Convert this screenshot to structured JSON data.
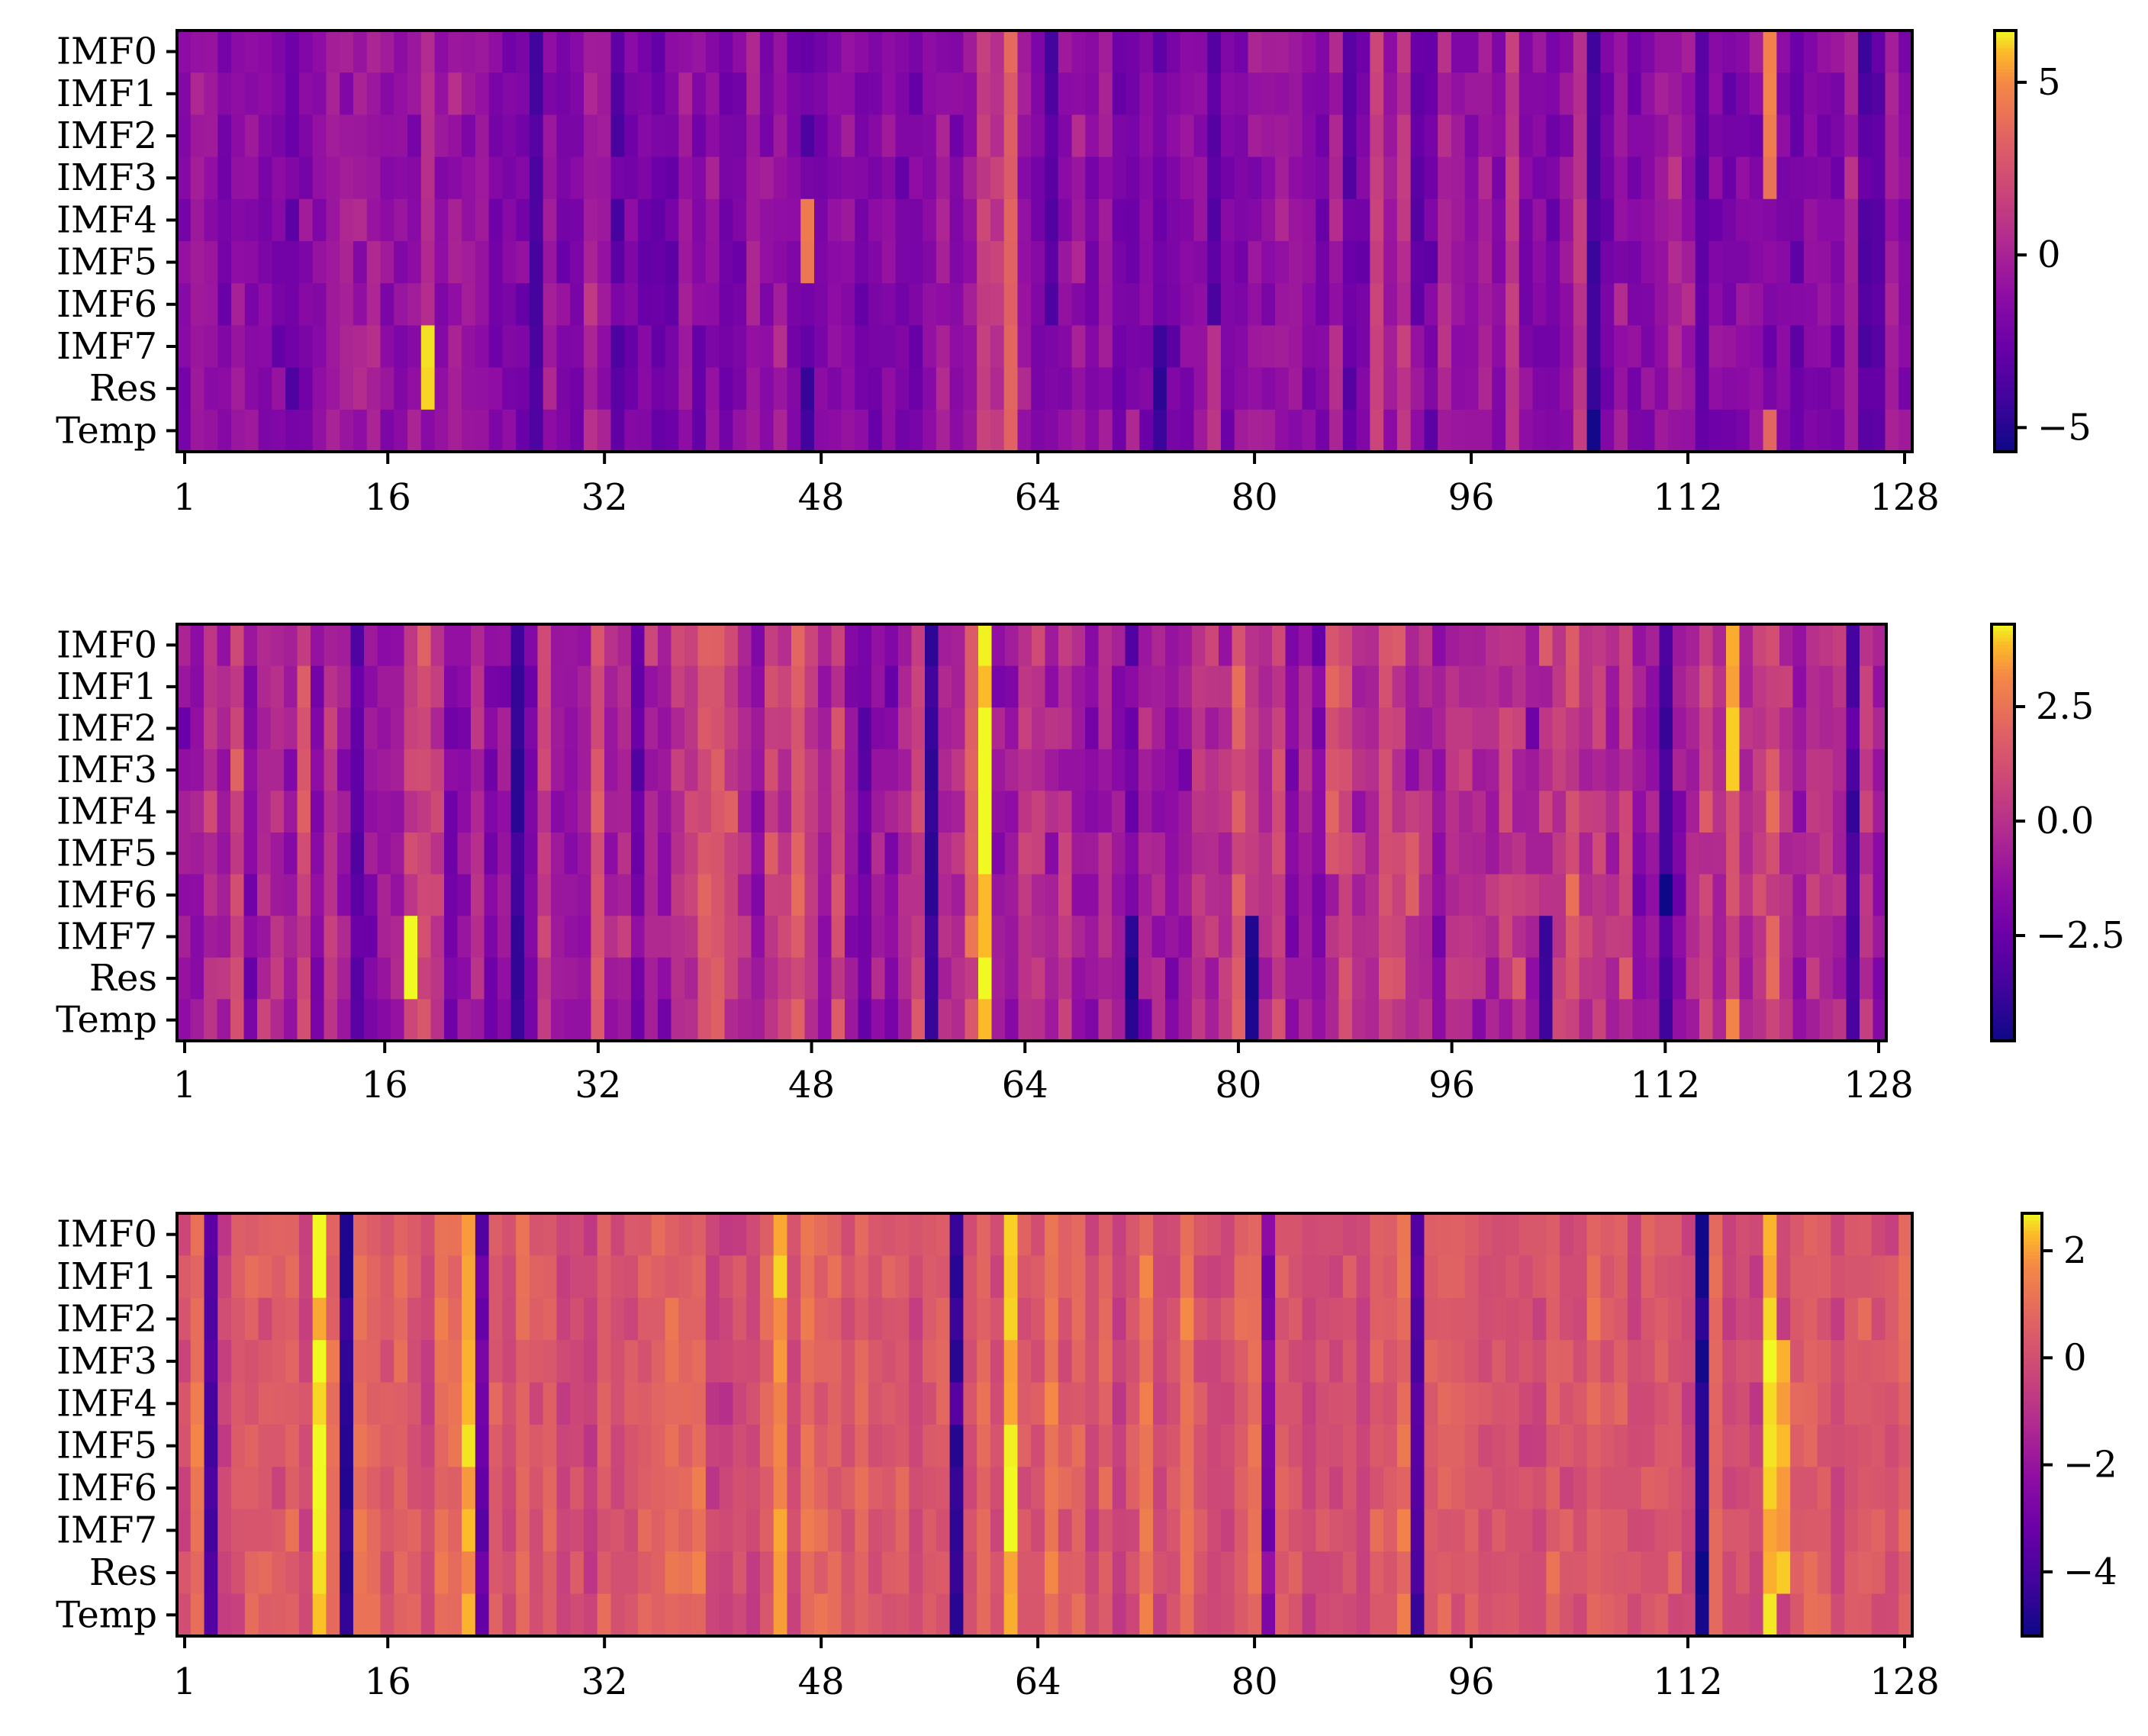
{
  "chart_data": [
    {
      "type": "heatmap",
      "colormap": "plasma",
      "rows": [
        "IMF0",
        "IMF1",
        "IMF2",
        "IMF3",
        "IMF4",
        "IMF5",
        "IMF6",
        "IMF7",
        "Res",
        "Temp"
      ],
      "x_ticks": [
        "1",
        "16",
        "32",
        "48",
        "64",
        "80",
        "96",
        "112",
        "128"
      ],
      "x_tick_values": [
        1,
        16,
        32,
        48,
        64,
        80,
        96,
        112,
        128
      ],
      "xlim": [
        1,
        128
      ],
      "vlim": [
        -5.7,
        6.5
      ],
      "colorbar_ticks": [
        "5",
        "0",
        "−5"
      ],
      "colorbar_tick_values": [
        5,
        0,
        -5
      ],
      "columns": 128,
      "baseline": -1.2,
      "noise_std": 0.9,
      "seed": 11,
      "features": [
        {
          "col": 19,
          "rows": [
            7,
            8
          ],
          "value": 6.3
        },
        {
          "col": 19,
          "rows": [
            0,
            6
          ],
          "value": 0.5
        },
        {
          "col": 27,
          "rows": [
            0,
            9
          ],
          "value": -3.8
        },
        {
          "col": 47,
          "rows": [
            4,
            5
          ],
          "value": 4.6
        },
        {
          "col": 47,
          "rows": [
            8,
            9
          ],
          "value": -4.0
        },
        {
          "col": 62,
          "rows": [
            0,
            9
          ],
          "value": 3.2
        },
        {
          "col": 65,
          "rows": [
            0,
            6
          ],
          "value": -3.3
        },
        {
          "col": 73,
          "rows": [
            7,
            9
          ],
          "value": -4.6
        },
        {
          "col": 77,
          "rows": [
            0,
            6
          ],
          "value": -3.3
        },
        {
          "col": 105,
          "rows": [
            0,
            9
          ],
          "value": -4.0
        },
        {
          "col": 105,
          "rows": [
            9,
            9
          ],
          "value": -5.7
        },
        {
          "col": 113,
          "rows": [
            0,
            9
          ],
          "value": -3.0
        },
        {
          "col": 118,
          "rows": [
            0,
            3
          ],
          "value": 4.6
        },
        {
          "col": 118,
          "rows": [
            9,
            9
          ],
          "value": 3.5
        },
        {
          "col": 126,
          "rows": [
            0,
            9
          ],
          "value": -3.2
        },
        {
          "col": 60,
          "rows": [
            0,
            9
          ],
          "value": 1.5
        },
        {
          "col": 89,
          "rows": [
            0,
            9
          ],
          "value": 1.6
        },
        {
          "col": 92,
          "rows": [
            0,
            6
          ],
          "value": -3.0
        },
        {
          "col": 99,
          "rows": [
            0,
            9
          ],
          "value": 1.2
        }
      ]
    },
    {
      "type": "heatmap",
      "colormap": "plasma",
      "rows": [
        "IMF0",
        "IMF1",
        "IMF2",
        "IMF3",
        "IMF4",
        "IMF5",
        "IMF6",
        "IMF7",
        "Res",
        "Temp"
      ],
      "x_ticks": [
        "1",
        "16",
        "32",
        "48",
        "64",
        "80",
        "96",
        "112",
        "128"
      ],
      "x_tick_values": [
        1,
        16,
        32,
        48,
        64,
        80,
        96,
        112,
        128
      ],
      "xlim": [
        1,
        128
      ],
      "vlim": [
        -4.8,
        4.3
      ],
      "colorbar_ticks": [
        "2.5",
        "0.0",
        "−2.5"
      ],
      "colorbar_tick_values": [
        2.5,
        0.0,
        -2.5
      ],
      "columns": 128,
      "baseline": -0.4,
      "noise_std": 0.9,
      "seed": 23,
      "features": [
        {
          "col": 18,
          "rows": [
            7,
            8
          ],
          "value": 4.1
        },
        {
          "col": 26,
          "rows": [
            0,
            9
          ],
          "value": -3.9
        },
        {
          "col": 57,
          "rows": [
            0,
            9
          ],
          "value": -4.0
        },
        {
          "col": 61,
          "rows": [
            0,
            9
          ],
          "value": 4.2
        },
        {
          "col": 72,
          "rows": [
            7,
            9
          ],
          "value": -4.1
        },
        {
          "col": 81,
          "rows": [
            7,
            9
          ],
          "value": -4.5
        },
        {
          "col": 87,
          "rows": [
            0,
            5
          ],
          "value": 1.6
        },
        {
          "col": 93,
          "rows": [
            5,
            6
          ],
          "value": 1.8
        },
        {
          "col": 103,
          "rows": [
            7,
            9
          ],
          "value": -3.7
        },
        {
          "col": 112,
          "rows": [
            0,
            9
          ],
          "value": -3.6
        },
        {
          "col": 112,
          "rows": [
            6,
            6
          ],
          "value": -4.7
        },
        {
          "col": 117,
          "rows": [
            0,
            3
          ],
          "value": 3.6
        },
        {
          "col": 117,
          "rows": [
            9,
            9
          ],
          "value": 3.0
        },
        {
          "col": 126,
          "rows": [
            0,
            9
          ],
          "value": -3.4
        },
        {
          "col": 14,
          "rows": [
            0,
            9
          ],
          "value": -2.8
        },
        {
          "col": 41,
          "rows": [
            0,
            9
          ],
          "value": 1.5
        }
      ]
    },
    {
      "type": "heatmap",
      "colormap": "plasma",
      "rows": [
        "IMF0",
        "IMF1",
        "IMF2",
        "IMF3",
        "IMF4",
        "IMF5",
        "IMF6",
        "IMF7",
        "Res",
        "Temp"
      ],
      "x_ticks": [
        "1",
        "16",
        "32",
        "48",
        "64",
        "80",
        "96",
        "112",
        "128"
      ],
      "x_tick_values": [
        1,
        16,
        32,
        48,
        64,
        80,
        96,
        112,
        128
      ],
      "xlim": [
        1,
        128
      ],
      "vlim": [
        -5.2,
        2.7
      ],
      "colorbar_ticks": [
        "2",
        "0",
        "−2",
        "−4"
      ],
      "colorbar_tick_values": [
        2,
        0,
        -2,
        -4
      ],
      "columns": 128,
      "baseline": 0.3,
      "noise_std": 0.45,
      "seed": 37,
      "features": [
        {
          "col": 3,
          "rows": [
            0,
            9
          ],
          "value": -3.9
        },
        {
          "col": 11,
          "rows": [
            0,
            9
          ],
          "value": 2.5
        },
        {
          "col": 13,
          "rows": [
            0,
            9
          ],
          "value": -4.7
        },
        {
          "col": 22,
          "rows": [
            0,
            9
          ],
          "value": 2.2
        },
        {
          "col": 23,
          "rows": [
            0,
            9
          ],
          "value": -3.3
        },
        {
          "col": 45,
          "rows": [
            0,
            9
          ],
          "value": 1.8
        },
        {
          "col": 58,
          "rows": [
            0,
            9
          ],
          "value": -4.4
        },
        {
          "col": 62,
          "rows": [
            0,
            9
          ],
          "value": 2.3
        },
        {
          "col": 81,
          "rows": [
            0,
            9
          ],
          "value": -2.6
        },
        {
          "col": 92,
          "rows": [
            0,
            9
          ],
          "value": -3.9
        },
        {
          "col": 113,
          "rows": [
            0,
            9
          ],
          "value": -4.9
        },
        {
          "col": 118,
          "rows": [
            0,
            9
          ],
          "value": 2.4
        },
        {
          "col": 119,
          "rows": [
            3,
            8
          ],
          "value": 2.2
        }
      ]
    }
  ]
}
